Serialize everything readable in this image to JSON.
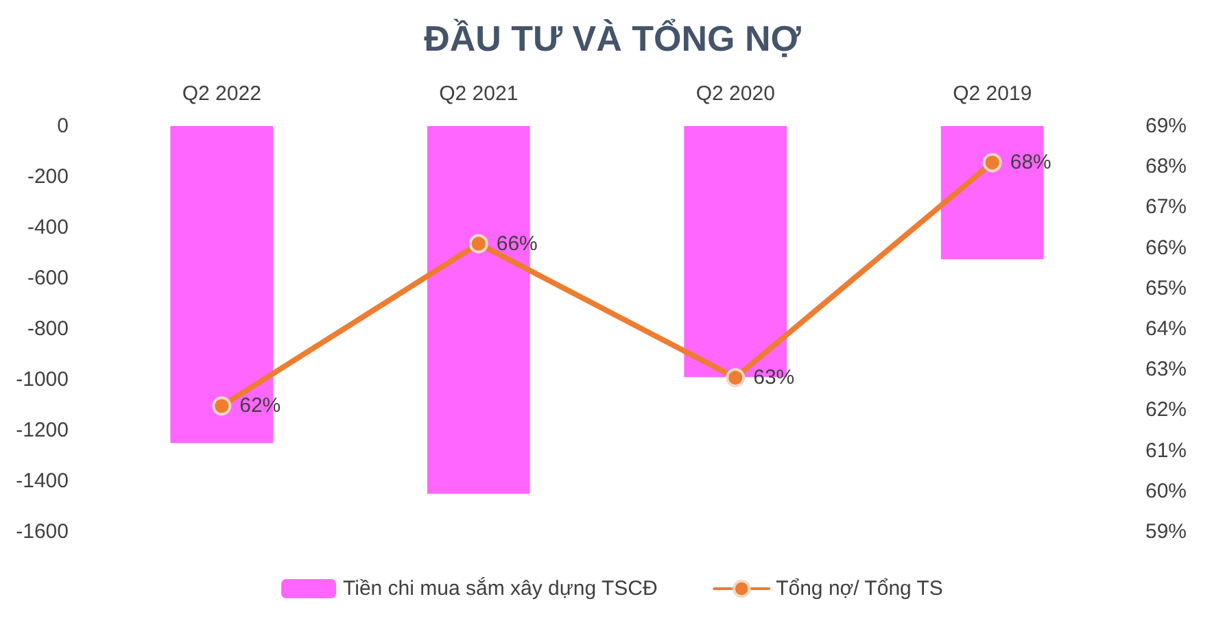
{
  "chart_data": {
    "type": "bar",
    "title": "ĐẦU TƯ VÀ TỔNG NỢ",
    "categories": [
      "Q2 2022",
      "Q2 2021",
      "Q2 2020",
      "Q2 2019"
    ],
    "series": [
      {
        "name": "Tiền chi mua sắm xây dựng TSCĐ",
        "color": "#ff66ff",
        "values": [
          -1250,
          -1450,
          -990,
          -525
        ]
      },
      {
        "name": "Tổng nợ/ Tổng TS",
        "type": "line",
        "axis": "y2",
        "color": "#ed7d31",
        "marker": "circle",
        "values": [
          62.1,
          66.1,
          62.8,
          68.1
        ],
        "value_labels": [
          "62%",
          "66%",
          "63%",
          "68%"
        ]
      }
    ],
    "ylim": [
      -1600,
      0
    ],
    "yticks": [
      0,
      -200,
      -400,
      -600,
      -800,
      -1000,
      -1200,
      -1400,
      -1600
    ],
    "y2lim": [
      59,
      69
    ],
    "y2ticks": [
      {
        "value": 59,
        "label": "59%"
      },
      {
        "value": 60,
        "label": "60%"
      },
      {
        "value": 61,
        "label": "61%"
      },
      {
        "value": 62,
        "label": "62%"
      },
      {
        "value": 63,
        "label": "63%"
      },
      {
        "value": 64,
        "label": "64%"
      },
      {
        "value": 65,
        "label": "65%"
      },
      {
        "value": 66,
        "label": "66%"
      },
      {
        "value": 67,
        "label": "67%"
      },
      {
        "value": 68,
        "label": "68%"
      },
      {
        "value": 69,
        "label": "69%"
      }
    ],
    "grid": false,
    "legend": "bottom"
  }
}
